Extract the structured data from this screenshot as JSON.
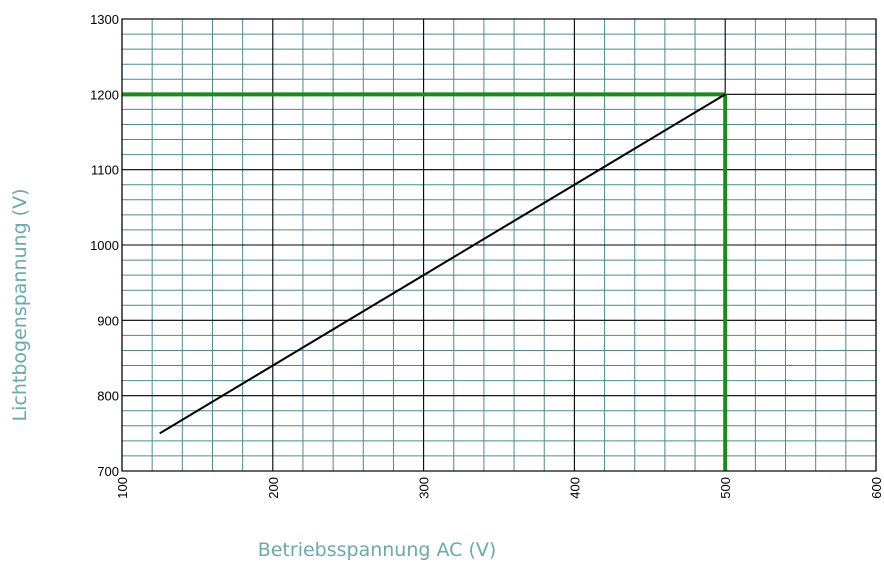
{
  "chart_data": {
    "type": "line",
    "title": "",
    "xlabel": "Betriebsspannung AC (V)",
    "ylabel": "Lichtbogenspannung (V)",
    "xlim": [
      100,
      600
    ],
    "ylim": [
      700,
      1300
    ],
    "x_ticks": [
      "100",
      "200",
      "300",
      "400",
      "500",
      "600"
    ],
    "y_ticks": [
      "700",
      "800",
      "900",
      "1000",
      "1100",
      "1200",
      "1300"
    ],
    "x_tick_values": [
      100,
      200,
      300,
      400,
      500,
      600
    ],
    "y_tick_values": [
      700,
      800,
      900,
      1000,
      1100,
      1200,
      1300
    ],
    "x_minor_step": 20,
    "y_minor_step": 20,
    "grid": true,
    "series": [
      {
        "x": [
          125,
          500
        ],
        "y": [
          750,
          1200
        ],
        "color": "#000000"
      }
    ],
    "reference_lines": [
      {
        "orientation": "horizontal",
        "value": 1200,
        "from": 100,
        "to": 500,
        "color": "#1a8a1a"
      },
      {
        "orientation": "vertical",
        "value": 500,
        "from": 700,
        "to": 1200,
        "color": "#1a8a1a"
      }
    ],
    "colors": {
      "minor_grid": "#4f8a8b",
      "major_grid": "#000000",
      "axis_title": "#6aa9ad"
    }
  }
}
